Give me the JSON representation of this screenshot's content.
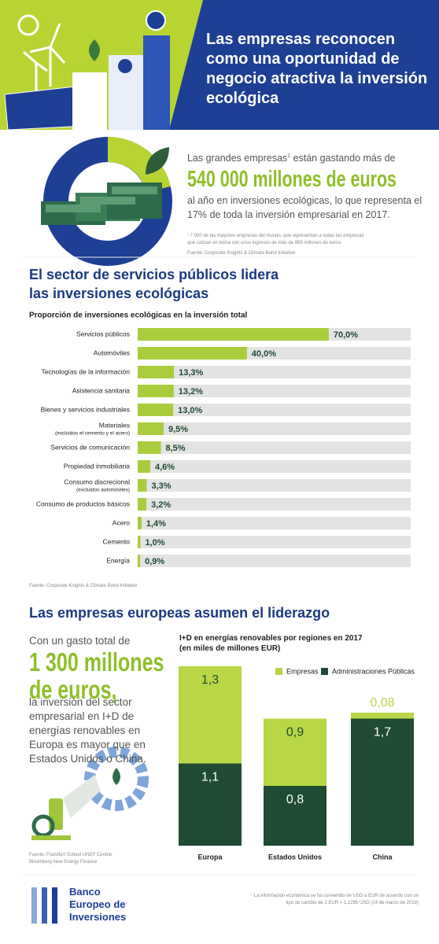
{
  "header": {
    "title": "Las empresas reconocen como una oportunidad de negocio atractiva la inversión ecológica"
  },
  "intro": {
    "text_before": "Las grandes empresas",
    "footnote_mark": "1",
    "text_after": " están gastando más de",
    "highlight": "540 000 millones de euros",
    "text_end": "al año en inversiones ecológicas, lo que representa el 17% de toda la inversión empresarial en 2017.",
    "footnote": "¹ 7 000 de las mayores empresas del mundo, que representan a todas las empresas que cotizan en bolsa con unos ingresos de más de 883 millones de euros",
    "source": "Fuente: Corporate Knights & Climate Bond Initiative"
  },
  "sector_section": {
    "heading": "El sector de servicios públicos lidera las inversiones ecológicas",
    "source": "Fuente: Corporate Knights & Climate Bond Initiative"
  },
  "europe_section": {
    "heading": "Las empresas europeas asumen el liderazgo",
    "text_before": "Con un gasto total de",
    "highlight": "1 300 millones de euros,",
    "text_after": "la inversión del sector empresarial en I+D de energías renovables en Europa es mayor que en Estados Unidos o China.",
    "source": "Fuente: Frankfurt School UNEP Centre/ Bloomberg New Energy Finance"
  },
  "footer": {
    "logo": "Banco Europeo de Inversiones",
    "note": "La información económica se ha convertido de USD a EUR de acuerdo con un tipo de cambio de 1 EUR = 1,1295 USD (14 de marzo de 2019)"
  },
  "chart_data": [
    {
      "type": "bar",
      "orientation": "horizontal",
      "title": "Proporción de inversiones ecológicas en la inversión total",
      "categories": [
        "Servicios públicos",
        "Automóviles",
        "Tecnologías de la información",
        "Asistencia sanitaria",
        "Bienes y servicios industriales",
        "Materiales",
        "Servicios de comunicación",
        "Propiedad inmobiliaria",
        "Consumo discrecional",
        "Consumo de productos básicos",
        "Acero",
        "Cemento",
        "Energía"
      ],
      "category_notes": [
        null,
        null,
        null,
        null,
        null,
        "(excluidos el cemento y el acero)",
        null,
        null,
        "(excluidos automóviles)",
        null,
        null,
        null,
        null
      ],
      "values": [
        70.0,
        40.0,
        13.3,
        13.2,
        13.0,
        9.5,
        8.5,
        4.6,
        3.3,
        3.2,
        1.4,
        1.0,
        0.9
      ],
      "value_labels": [
        "70,0%",
        "40,0%",
        "13,3%",
        "13,2%",
        "13,0%",
        "9,5%",
        "8,5%",
        "4,6%",
        "3,3%",
        "3,2%",
        "1,4%",
        "1,0%",
        "0,9%"
      ],
      "color": "#a9cc3c",
      "xlim": [
        0,
        100
      ]
    },
    {
      "type": "stacked_bar",
      "title": "I+D en energías renovables por regiones en 2017 (en miles de millones EUR)",
      "categories": [
        "Europa",
        "Estados Unidos",
        "China"
      ],
      "series": [
        {
          "name": "Empresas",
          "color": "#b8d646",
          "values": [
            1.3,
            0.9,
            0.08
          ],
          "value_labels": [
            "1,3",
            "0,9",
            "0,08"
          ]
        },
        {
          "name": "Administraciones Públicas",
          "color": "#1f4a33",
          "values": [
            1.1,
            0.8,
            1.7
          ],
          "value_labels": [
            "1,1",
            "0,8",
            "1,7"
          ]
        }
      ]
    }
  ]
}
